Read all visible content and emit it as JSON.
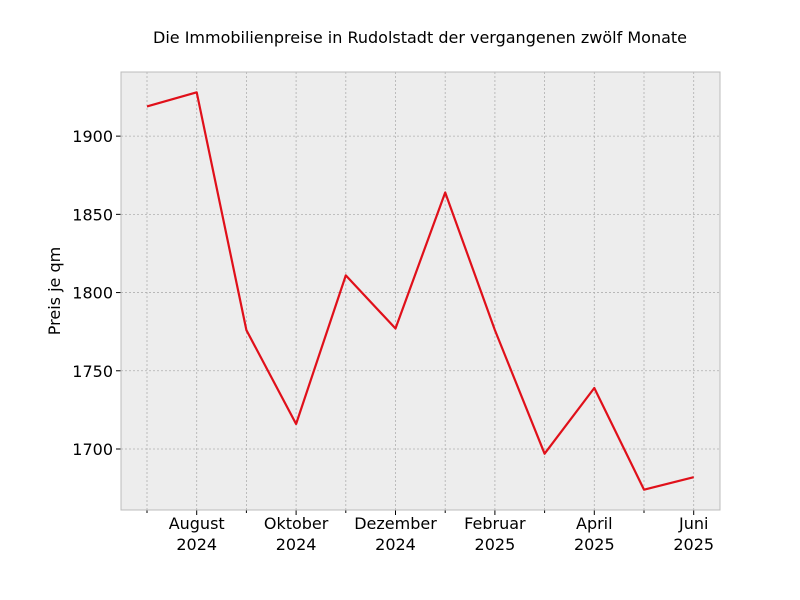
{
  "chart_data": {
    "type": "line",
    "title": "Die Immobilienpreise in Rudolstadt der vergangenen zwölf Monate",
    "xlabel": "",
    "ylabel": "Preis je qm",
    "x": [
      "2024-07",
      "2024-08",
      "2024-09",
      "2024-10",
      "2024-11",
      "2024-12",
      "2025-01",
      "2025-02",
      "2025-03",
      "2025-04",
      "2025-05",
      "2025-06"
    ],
    "series": [
      {
        "values": [
          1919,
          1928,
          1776,
          1716,
          1811,
          1777,
          1864,
          1776,
          1697,
          1739,
          1674,
          1682
        ]
      }
    ],
    "x_tick_labels": [
      {
        "x": "2024-08",
        "line1": "August",
        "line2": "2024"
      },
      {
        "x": "2024-10",
        "line1": "Oktober",
        "line2": "2024"
      },
      {
        "x": "2024-12",
        "line1": "Dezember",
        "line2": "2024"
      },
      {
        "x": "2025-02",
        "line1": "Februar",
        "line2": "2025"
      },
      {
        "x": "2025-04",
        "line1": "April",
        "line2": "2025"
      },
      {
        "x": "2025-06",
        "line1": "Juni",
        "line2": "2025"
      }
    ],
    "y_ticks": [
      1700,
      1750,
      1800,
      1850,
      1900
    ],
    "ylim": [
      1661,
      1941
    ],
    "grid": true,
    "colors": {
      "line": "#e0101a",
      "plot_background": "#ededed",
      "grid": "#b0b0b0",
      "frame": "#bcbcbc"
    }
  }
}
